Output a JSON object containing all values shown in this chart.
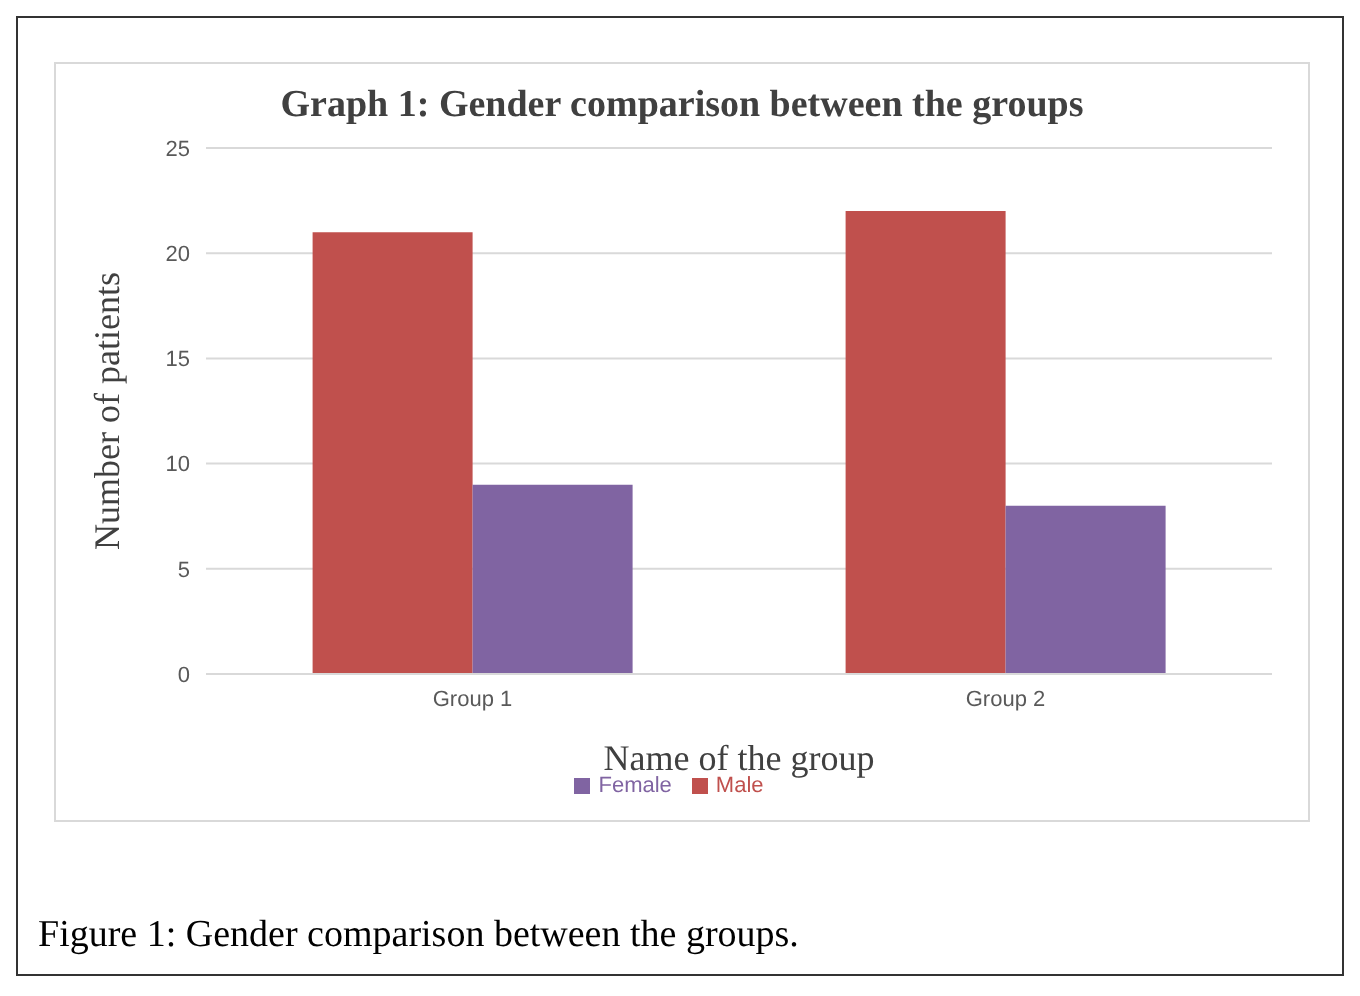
{
  "chart_data": {
    "type": "bar",
    "title": "Graph 1: Gender comparison between the groups",
    "xlabel": "Name of the group",
    "ylabel": "Number of patients",
    "categories": [
      "Group 1",
      "Group 2"
    ],
    "series": [
      {
        "name": "Male",
        "color": "#c0504d",
        "values": [
          21,
          22
        ]
      },
      {
        "name": "Female",
        "color": "#8064a2",
        "values": [
          9,
          8
        ]
      }
    ],
    "ylim": [
      0,
      25
    ],
    "yticks": [
      0,
      5,
      10,
      15,
      20,
      25
    ],
    "grid": "y",
    "legend": "bottom",
    "annotations": [
      "Figure 1: Gender comparison between the groups."
    ]
  }
}
